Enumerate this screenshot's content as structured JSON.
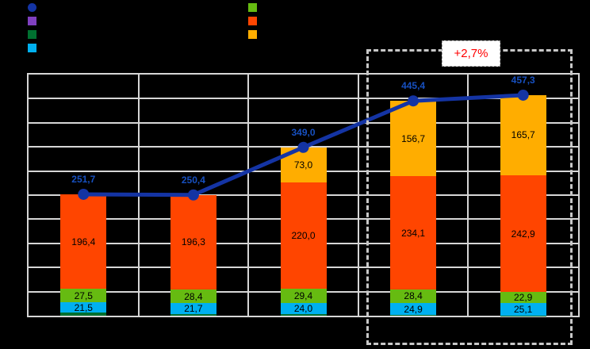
{
  "legend": {
    "left_column": [
      {
        "series": "total-line",
        "marker": "circle",
        "color": "#1434A4"
      },
      {
        "series": "series-purple",
        "marker": "square",
        "color": "#8040C0"
      },
      {
        "series": "series-darkgreen",
        "marker": "square",
        "color": "#007030"
      },
      {
        "series": "series-cyan",
        "marker": "square",
        "color": "#00B0F0"
      }
    ],
    "right_column": [
      {
        "series": "series-green",
        "marker": "square",
        "color": "#66BB11"
      },
      {
        "series": "series-red",
        "marker": "square",
        "color": "#FF4500"
      },
      {
        "series": "series-orange",
        "marker": "square",
        "color": "#FFAD00"
      }
    ]
  },
  "annotation": {
    "text": "+2,7%",
    "text_color": "#FF0000"
  },
  "chart_data": {
    "type": "bar",
    "subtype": "stacked-bars-with-total-line",
    "title": "",
    "xlabel": "",
    "ylabel": "",
    "categories": [
      "",
      "",
      "",
      "",
      ""
    ],
    "series": [
      {
        "name": "darkgreen-base",
        "color": "#007030",
        "estimated": true,
        "values": [
          6.3,
          4.0,
          2.6,
          1.3,
          0.7
        ],
        "labels": [
          "",
          "",
          "",
          "",
          ""
        ]
      },
      {
        "name": "cyan",
        "color": "#00B0F0",
        "values": [
          21.5,
          21.7,
          24.0,
          24.9,
          25.1
        ],
        "labels": [
          "21,5",
          "21,7",
          "24,0",
          "24,9",
          "25,1"
        ]
      },
      {
        "name": "green",
        "color": "#66BB11",
        "values": [
          27.5,
          28.4,
          29.4,
          28.4,
          22.9
        ],
        "labels": [
          "27,5",
          "28,4",
          "29,4",
          "28,4",
          "22,9"
        ]
      },
      {
        "name": "red",
        "color": "#FF4500",
        "values": [
          196.4,
          196.3,
          220.0,
          234.1,
          242.9
        ],
        "labels": [
          "196,4",
          "196,3",
          "220,0",
          "234,1",
          "242,9"
        ]
      },
      {
        "name": "orange",
        "color": "#FFAD00",
        "values": [
          0,
          0,
          73.0,
          156.7,
          165.7
        ],
        "labels": [
          "",
          "",
          "73,0",
          "156,7",
          "165,7"
        ]
      }
    ],
    "line": {
      "name": "total-line",
      "color": "#1434A4",
      "label_color": "#1750C0",
      "marker": "circle",
      "values": [
        251.7,
        250.4,
        349.0,
        445.4,
        457.3
      ],
      "labels": [
        "251,7",
        "250,4",
        "349,0",
        "445,4",
        "457,3"
      ]
    },
    "ylim": [
      0,
      500
    ],
    "grid_step": 50,
    "grid": true,
    "plot_bg": "#000000",
    "grid_color": "#D6D6D6",
    "legend_position": "top",
    "highlight": {
      "category_indexes": [
        3,
        4
      ],
      "style": "dashed-box",
      "label": "+2,7%"
    }
  }
}
